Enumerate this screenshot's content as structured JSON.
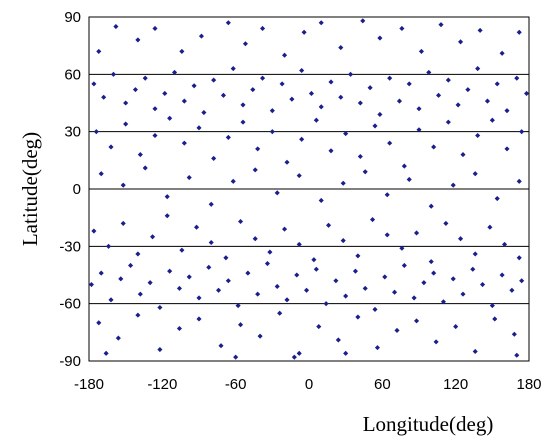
{
  "chart_data": {
    "type": "scatter",
    "title": "",
    "xlabel": "Longitude(deg)",
    "ylabel": "Latitude(deg)",
    "xlim": [
      -180,
      180
    ],
    "ylim": [
      -90,
      90
    ],
    "x_ticks": [
      "-180",
      "-120",
      "-60",
      "0",
      "60",
      "120",
      "180"
    ],
    "y_ticks": [
      "90",
      "60",
      "30",
      "0",
      "-30",
      "-60",
      "-90"
    ],
    "grid": "horizontal",
    "marker_color": "#1a1f8c",
    "series": [
      {
        "points": [
          [
            -172,
            72
          ],
          [
            -158,
            85
          ],
          [
            -140,
            78
          ],
          [
            -126,
            84
          ],
          [
            -104,
            72
          ],
          [
            -88,
            80
          ],
          [
            -66,
            87
          ],
          [
            -52,
            76
          ],
          [
            -38,
            84
          ],
          [
            -20,
            70
          ],
          [
            -4,
            82
          ],
          [
            10,
            87
          ],
          [
            26,
            74
          ],
          [
            44,
            88
          ],
          [
            58,
            79
          ],
          [
            76,
            84
          ],
          [
            92,
            72
          ],
          [
            108,
            86
          ],
          [
            124,
            77
          ],
          [
            140,
            83
          ],
          [
            158,
            71
          ],
          [
            172,
            82
          ],
          [
            -176,
            55
          ],
          [
            -168,
            48
          ],
          [
            -160,
            60
          ],
          [
            -150,
            45
          ],
          [
            -142,
            52
          ],
          [
            -134,
            58
          ],
          [
            -126,
            42
          ],
          [
            -118,
            50
          ],
          [
            -110,
            61
          ],
          [
            -102,
            46
          ],
          [
            -94,
            54
          ],
          [
            -86,
            40
          ],
          [
            -78,
            57
          ],
          [
            -70,
            49
          ],
          [
            -62,
            63
          ],
          [
            -54,
            44
          ],
          [
            -46,
            52
          ],
          [
            -38,
            58
          ],
          [
            -30,
            41
          ],
          [
            -22,
            55
          ],
          [
            -14,
            47
          ],
          [
            -6,
            62
          ],
          [
            2,
            50
          ],
          [
            10,
            43
          ],
          [
            18,
            56
          ],
          [
            26,
            48
          ],
          [
            34,
            60
          ],
          [
            42,
            45
          ],
          [
            50,
            53
          ],
          [
            58,
            39
          ],
          [
            66,
            58
          ],
          [
            74,
            46
          ],
          [
            82,
            55
          ],
          [
            90,
            42
          ],
          [
            98,
            61
          ],
          [
            106,
            49
          ],
          [
            114,
            57
          ],
          [
            122,
            44
          ],
          [
            130,
            52
          ],
          [
            138,
            63
          ],
          [
            146,
            46
          ],
          [
            154,
            55
          ],
          [
            162,
            41
          ],
          [
            170,
            58
          ],
          [
            178,
            50
          ],
          [
            -174,
            30
          ],
          [
            -162,
            22
          ],
          [
            -150,
            34
          ],
          [
            -138,
            18
          ],
          [
            -126,
            28
          ],
          [
            -114,
            37
          ],
          [
            -102,
            24
          ],
          [
            -90,
            32
          ],
          [
            -78,
            16
          ],
          [
            -66,
            27
          ],
          [
            -54,
            35
          ],
          [
            -42,
            21
          ],
          [
            -30,
            30
          ],
          [
            -18,
            14
          ],
          [
            -6,
            26
          ],
          [
            6,
            36
          ],
          [
            18,
            20
          ],
          [
            30,
            29
          ],
          [
            42,
            17
          ],
          [
            54,
            33
          ],
          [
            66,
            24
          ],
          [
            78,
            12
          ],
          [
            90,
            31
          ],
          [
            102,
            22
          ],
          [
            114,
            35
          ],
          [
            126,
            18
          ],
          [
            138,
            28
          ],
          [
            150,
            36
          ],
          [
            162,
            21
          ],
          [
            174,
            30
          ],
          [
            -170,
            8
          ],
          [
            -152,
            2
          ],
          [
            -134,
            11
          ],
          [
            -116,
            -4
          ],
          [
            -98,
            6
          ],
          [
            -80,
            -8
          ],
          [
            -62,
            4
          ],
          [
            -44,
            10
          ],
          [
            -26,
            -2
          ],
          [
            -8,
            7
          ],
          [
            10,
            -6
          ],
          [
            28,
            3
          ],
          [
            46,
            9
          ],
          [
            64,
            -3
          ],
          [
            82,
            5
          ],
          [
            100,
            -9
          ],
          [
            118,
            2
          ],
          [
            136,
            8
          ],
          [
            154,
            -5
          ],
          [
            172,
            4
          ],
          [
            -176,
            -22
          ],
          [
            -164,
            -30
          ],
          [
            -152,
            -18
          ],
          [
            -140,
            -34
          ],
          [
            -128,
            -25
          ],
          [
            -116,
            -14
          ],
          [
            -104,
            -32
          ],
          [
            -92,
            -20
          ],
          [
            -80,
            -28
          ],
          [
            -68,
            -36
          ],
          [
            -56,
            -17
          ],
          [
            -44,
            -26
          ],
          [
            -32,
            -33
          ],
          [
            -20,
            -21
          ],
          [
            -8,
            -29
          ],
          [
            4,
            -37
          ],
          [
            16,
            -19
          ],
          [
            28,
            -27
          ],
          [
            40,
            -35
          ],
          [
            52,
            -16
          ],
          [
            64,
            -24
          ],
          [
            76,
            -31
          ],
          [
            88,
            -23
          ],
          [
            100,
            -38
          ],
          [
            112,
            -18
          ],
          [
            124,
            -26
          ],
          [
            136,
            -34
          ],
          [
            148,
            -20
          ],
          [
            160,
            -29
          ],
          [
            172,
            -36
          ],
          [
            -178,
            -50
          ],
          [
            -170,
            -44
          ],
          [
            -162,
            -58
          ],
          [
            -154,
            -47
          ],
          [
            -146,
            -40
          ],
          [
            -138,
            -55
          ],
          [
            -130,
            -49
          ],
          [
            -122,
            -62
          ],
          [
            -114,
            -43
          ],
          [
            -106,
            -52
          ],
          [
            -98,
            -46
          ],
          [
            -90,
            -57
          ],
          [
            -82,
            -41
          ],
          [
            -74,
            -53
          ],
          [
            -66,
            -48
          ],
          [
            -58,
            -61
          ],
          [
            -50,
            -44
          ],
          [
            -42,
            -55
          ],
          [
            -34,
            -39
          ],
          [
            -26,
            -51
          ],
          [
            -18,
            -58
          ],
          [
            -10,
            -45
          ],
          [
            -2,
            -53
          ],
          [
            6,
            -42
          ],
          [
            14,
            -60
          ],
          [
            22,
            -48
          ],
          [
            30,
            -56
          ],
          [
            38,
            -43
          ],
          [
            46,
            -52
          ],
          [
            54,
            -63
          ],
          [
            62,
            -46
          ],
          [
            70,
            -54
          ],
          [
            78,
            -40
          ],
          [
            86,
            -57
          ],
          [
            94,
            -49
          ],
          [
            102,
            -44
          ],
          [
            110,
            -59
          ],
          [
            118,
            -47
          ],
          [
            126,
            -55
          ],
          [
            134,
            -42
          ],
          [
            142,
            -50
          ],
          [
            150,
            -61
          ],
          [
            158,
            -45
          ],
          [
            166,
            -53
          ],
          [
            174,
            -48
          ],
          [
            -172,
            -70
          ],
          [
            -156,
            -78
          ],
          [
            -140,
            -66
          ],
          [
            -122,
            -84
          ],
          [
            -106,
            -73
          ],
          [
            -90,
            -68
          ],
          [
            -72,
            -82
          ],
          [
            -56,
            -71
          ],
          [
            -40,
            -77
          ],
          [
            -24,
            -65
          ],
          [
            -8,
            -86
          ],
          [
            8,
            -72
          ],
          [
            24,
            -79
          ],
          [
            40,
            -67
          ],
          [
            56,
            -83
          ],
          [
            72,
            -74
          ],
          [
            88,
            -69
          ],
          [
            104,
            -80
          ],
          [
            120,
            -72
          ],
          [
            136,
            -85
          ],
          [
            152,
            -68
          ],
          [
            168,
            -76
          ],
          [
            -166,
            -86
          ],
          [
            -60,
            -88
          ],
          [
            -12,
            -88
          ],
          [
            30,
            -86
          ],
          [
            170,
            -87
          ]
        ]
      }
    ]
  }
}
